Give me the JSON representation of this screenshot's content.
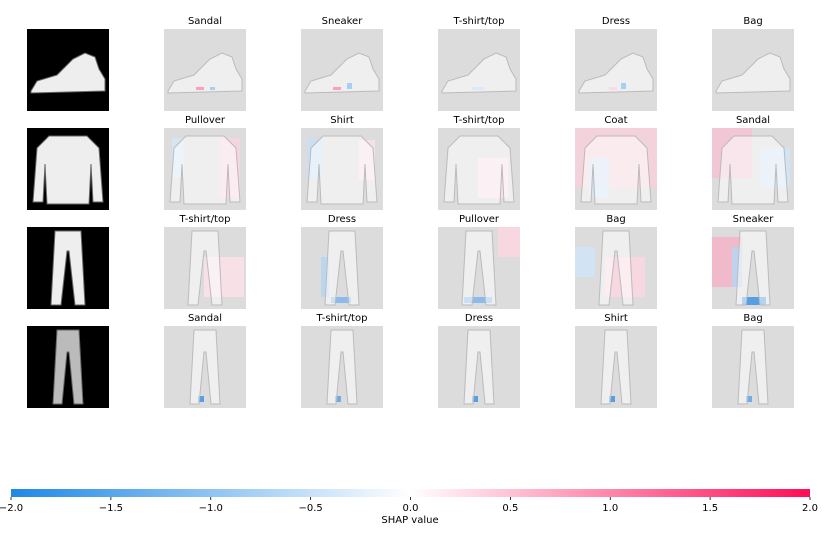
{
  "panels": {
    "rows": [
      [
        "Sandal",
        "Sneaker",
        "T-shirt/top",
        "Dress",
        "Bag"
      ],
      [
        "Pullover",
        "Shirt",
        "T-shirt/top",
        "Coat",
        "Sandal"
      ],
      [
        "T-shirt/top",
        "Dress",
        "Pullover",
        "Bag",
        "Sneaker"
      ],
      [
        "Sandal",
        "T-shirt/top",
        "Dress",
        "Shirt",
        "Bag"
      ]
    ]
  },
  "colorbar": {
    "label": "SHAP value",
    "lim": [
      -2,
      2
    ],
    "colors": [
      "#1e88e5",
      "#ffffff",
      "#ff0d57"
    ],
    "ticks": [
      {
        "value": -2,
        "label": "−2.0"
      },
      {
        "value": -1.5,
        "label": "−1.5"
      },
      {
        "value": -1,
        "label": "−1.0"
      },
      {
        "value": -0.5,
        "label": "−0.5"
      },
      {
        "value": 0,
        "label": "0.0"
      },
      0.5,
      {
        "value": 1,
        "label": "1.0"
      },
      1.5,
      {
        "value": 2,
        "label": "2.0"
      }
    ]
  }
}
